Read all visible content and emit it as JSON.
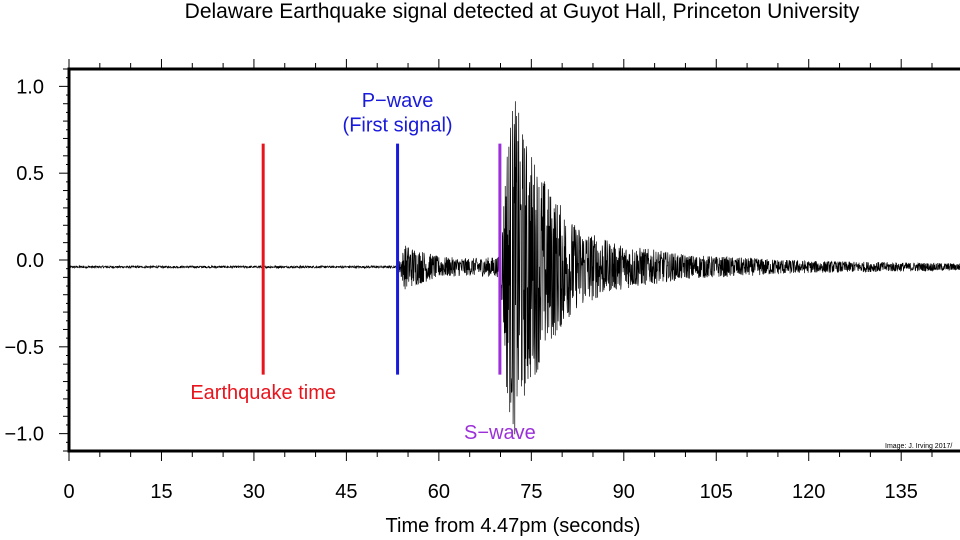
{
  "chart_data": {
    "type": "line",
    "title": "Delaware Earthquake signal detected at Guyot Hall, Princeton University",
    "xlabel": "Time from 4.47pm (seconds)",
    "ylabel": "",
    "xlim": [
      0,
      146
    ],
    "ylim": [
      -1.1,
      1.1
    ],
    "x_ticks": [
      "0",
      "15",
      "30",
      "45",
      "60",
      "75",
      "90",
      "105",
      "120",
      "135"
    ],
    "y_ticks": [
      "1.0",
      "0.5",
      "0.0",
      "-0.5",
      "-1.0"
    ],
    "baseline": -0.04,
    "seismogram_envelope": [
      {
        "x": 0,
        "amp": 0.006
      },
      {
        "x": 53.3,
        "amp": 0.006
      },
      {
        "x": 54.5,
        "amp": 0.13
      },
      {
        "x": 60,
        "amp": 0.06
      },
      {
        "x": 65,
        "amp": 0.05
      },
      {
        "x": 70,
        "amp": 0.06
      },
      {
        "x": 71,
        "amp": 0.75
      },
      {
        "x": 72.2,
        "amp": 1.0
      },
      {
        "x": 74,
        "amp": 0.75
      },
      {
        "x": 78,
        "amp": 0.45
      },
      {
        "x": 82,
        "amp": 0.25
      },
      {
        "x": 88,
        "amp": 0.14
      },
      {
        "x": 100,
        "amp": 0.07
      },
      {
        "x": 120,
        "amp": 0.035
      },
      {
        "x": 146,
        "amp": 0.02
      }
    ],
    "markers": [
      {
        "name": "Earthquake time",
        "x": 31.5,
        "y_range": [
          -0.66,
          0.67
        ],
        "color": "#e8141d"
      },
      {
        "name": "P-wave",
        "x": 53.3,
        "y_range": [
          -0.66,
          0.67
        ],
        "color": "#1a1adb"
      },
      {
        "name": "S-wave",
        "x": 69.9,
        "y_range": [
          -0.66,
          0.67
        ],
        "color": "#9b30d9"
      }
    ],
    "annotations": [
      {
        "text": "Earthquake time",
        "x": 31.5,
        "y": -0.8,
        "color": "#e8141d"
      },
      {
        "text": "P−wave",
        "x": 53.3,
        "y": 0.88,
        "color": "#1a1adb"
      },
      {
        "text": "(First signal)",
        "x": 53.3,
        "y": 0.74,
        "color": "#1a1adb"
      },
      {
        "text": "S−wave",
        "x": 69.9,
        "y": -1.03,
        "color": "#9b30d9"
      }
    ],
    "credit": "Image: J. Irving 2017/",
    "grid": false,
    "line_color": "#000000"
  }
}
